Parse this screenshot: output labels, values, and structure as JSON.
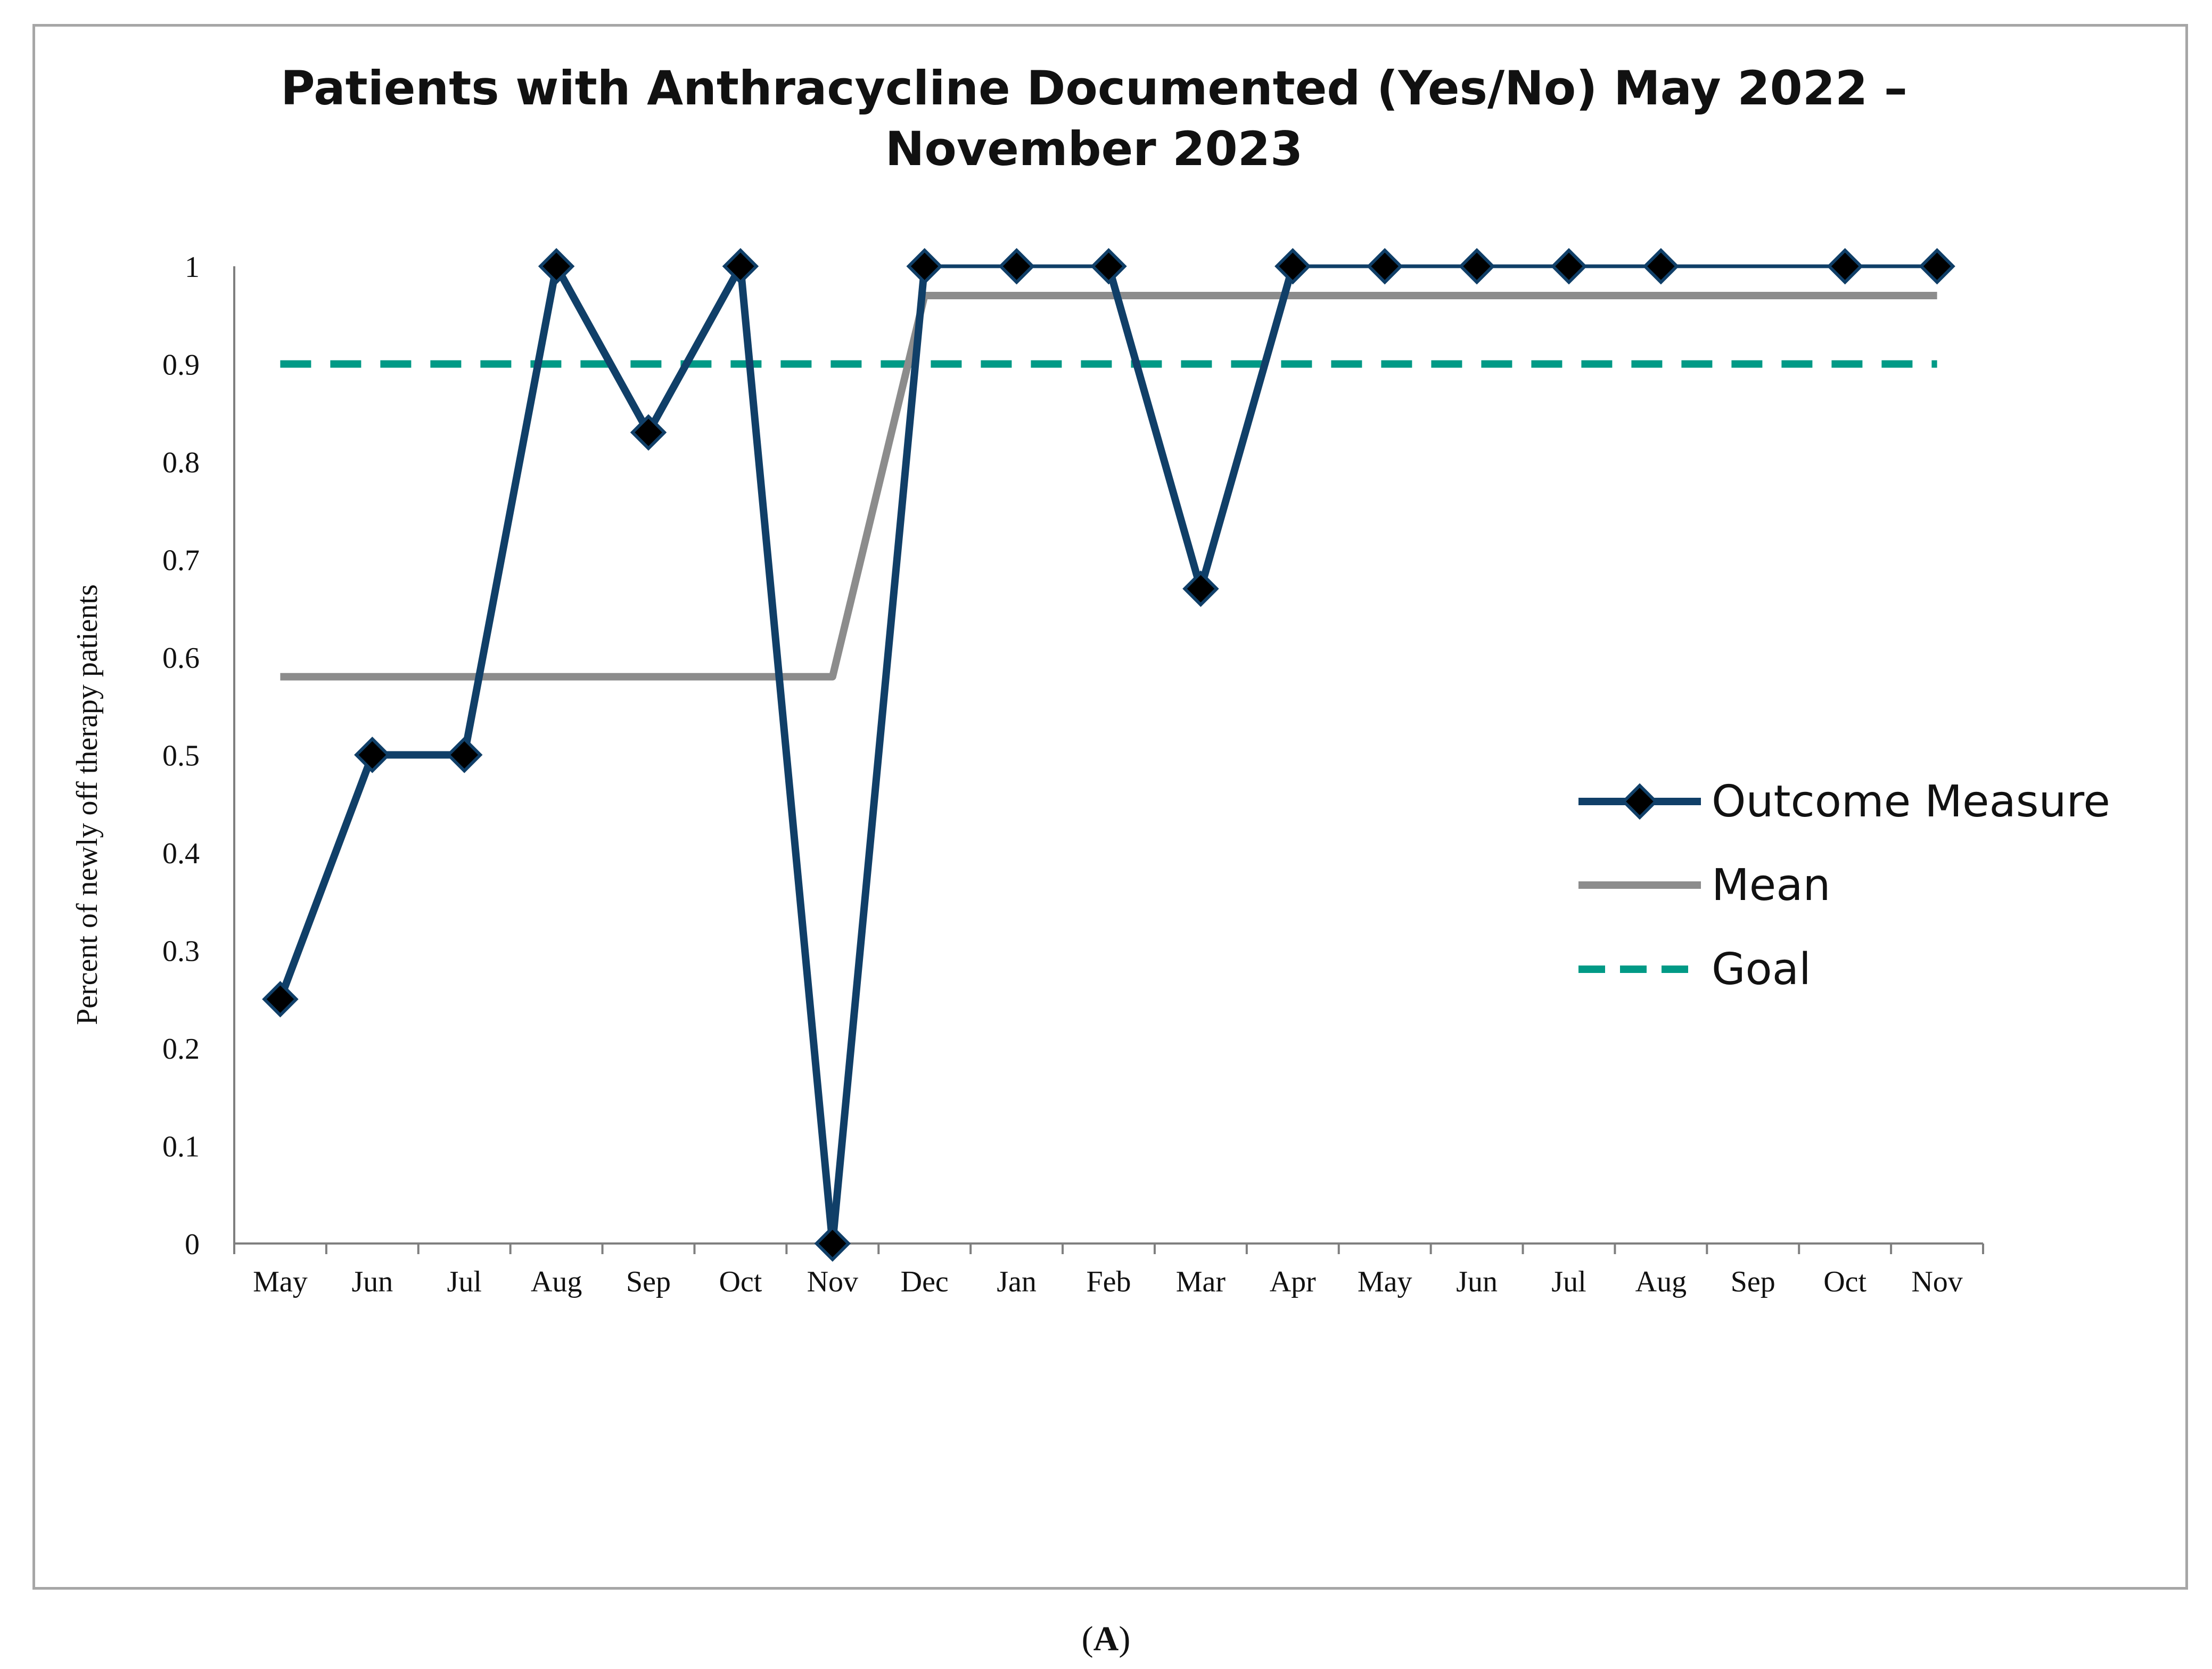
{
  "colors": {
    "outcome": "#103f68",
    "mean": "#8c8c8c",
    "goal": "#009a86",
    "marker_fill": "#000000",
    "frame": "#a6a6a6"
  },
  "panel_label_open": "(",
  "panel_label_letter": "A",
  "panel_label_close": ")",
  "chart_data": {
    "type": "line",
    "title_lines": [
      "Patients with Anthracycline Documented (Yes/No) May 2022 –",
      "November 2023"
    ],
    "ylabel": "Percent of newly off therapy patients",
    "xlabel": "",
    "ylim": [
      0,
      1
    ],
    "yticks": [
      "0",
      "0.1",
      "0.2",
      "0.3",
      "0.4",
      "0.5",
      "0.6",
      "0.7",
      "0.8",
      "0.9",
      "1"
    ],
    "categories": [
      "May",
      "Jun",
      "Jul",
      "Aug",
      "Sep",
      "Oct",
      "Nov",
      "Dec",
      "Jan",
      "Feb",
      "Mar",
      "Apr",
      "May",
      "Jun",
      "Jul",
      "Aug",
      "Sep",
      "Oct",
      "Nov"
    ],
    "grid": false,
    "legend_position": "right",
    "series": [
      {
        "name": "Outcome Measure",
        "style": "solid-diamond",
        "values": [
          0.25,
          0.5,
          0.5,
          1,
          0.83,
          1,
          0,
          1,
          1,
          1,
          0.67,
          1,
          1,
          1,
          1,
          1,
          null,
          1,
          1
        ]
      },
      {
        "name": "Mean",
        "style": "solid",
        "values": [
          0.58,
          0.58,
          0.58,
          0.58,
          0.58,
          0.58,
          0.58,
          0.97,
          0.97,
          0.97,
          0.97,
          0.97,
          0.97,
          0.97,
          0.97,
          0.97,
          0.97,
          0.97,
          0.97
        ]
      },
      {
        "name": "Goal",
        "style": "dashed",
        "values": [
          0.9,
          0.9,
          0.9,
          0.9,
          0.9,
          0.9,
          0.9,
          0.9,
          0.9,
          0.9,
          0.9,
          0.9,
          0.9,
          0.9,
          0.9,
          0.9,
          0.9,
          0.9,
          0.9
        ]
      }
    ]
  }
}
